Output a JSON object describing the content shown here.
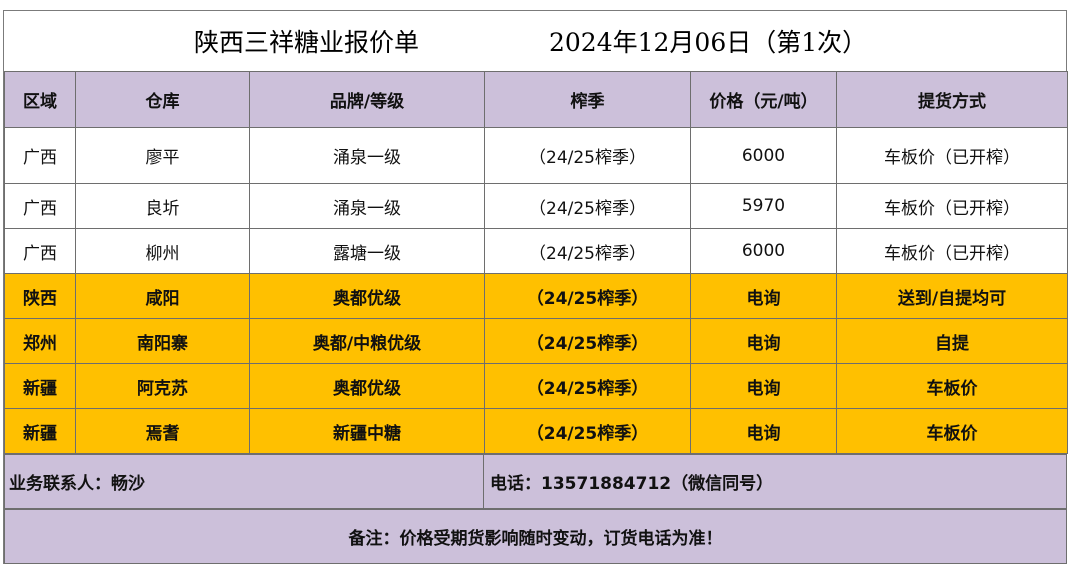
{
  "title": "陕西三祥糖业报价单",
  "date_line": "2024年12月06日（第1次）",
  "headers": [
    "区域",
    "仓库",
    "品牌/等级",
    "榨季",
    "价格（元/吨）",
    "提货方式"
  ],
  "rows": [
    {
      "region": "广西",
      "warehouse": "廖平",
      "brand": "涌泉一级",
      "season": "（24/25榨季）",
      "price": "6000",
      "pickup": "车板价（已开榨）"
    },
    {
      "region": "广西",
      "warehouse": "良圻",
      "brand": "涌泉一级",
      "season": "（24/25榨季）",
      "price": "5970",
      "pickup": "车板价（已开榨）"
    },
    {
      "region": "广西",
      "warehouse": "柳州",
      "brand": "露塘一级",
      "season": "（24/25榨季）",
      "price": "6000",
      "pickup": "车板价（已开榨）"
    },
    {
      "region": "陕西",
      "warehouse": "咸阳",
      "brand": "奥都优级",
      "season": "（24/25榨季）",
      "price": "电询",
      "pickup": "送到/自提均可"
    },
    {
      "region": "郑州",
      "warehouse": "南阳寨",
      "brand": "奥都/中粮优级",
      "season": "（24/25榨季）",
      "price": "电询",
      "pickup": "自提"
    },
    {
      "region": "新疆",
      "warehouse": "阿克苏",
      "brand": "奥都优级",
      "season": "（24/25榨季）",
      "price": "电询",
      "pickup": "车板价"
    },
    {
      "region": "新疆",
      "warehouse": "焉耆",
      "brand": "新疆中糖",
      "season": "（24/25榨季）",
      "price": "电询",
      "pickup": "车板价"
    }
  ],
  "contact": "业务联系人：畅沙",
  "phone": "电话：13571884712（微信同号）",
  "note": "备注：价格受期货影响随时变动，订货电话为准！",
  "colors": {
    "header_bg": "#ccc0da",
    "highlight_bg": "#ffc000"
  }
}
